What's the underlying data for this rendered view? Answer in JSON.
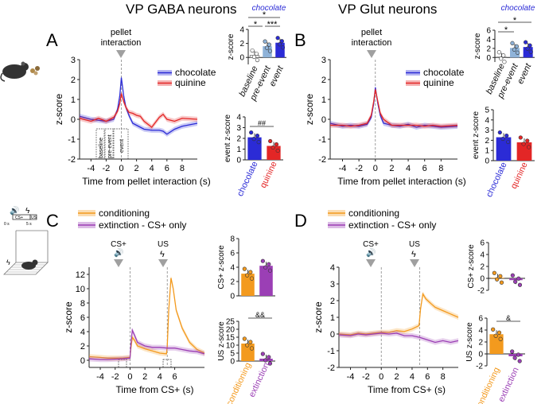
{
  "colors": {
    "chocolate": "#2b2bd6",
    "quinine": "#e32626",
    "pre_event": "#8fb3d9",
    "conditioning": "#f39a1e",
    "extinction": "#9b3fb5",
    "axis": "#222222",
    "arrow": "#a0a0a0"
  },
  "titles": {
    "gaba": "VP GABA neurons",
    "glut": "VP Glut neurons",
    "chocolate_A": "chocolate",
    "chocolate_B": "chocolate"
  },
  "panel_letters": {
    "A": "A",
    "B": "B",
    "C": "C",
    "D": "D"
  },
  "annotations": {
    "pellet_interaction_A": [
      "pellet",
      "interaction"
    ],
    "pellet_interaction_B": [
      "pellet",
      "interaction"
    ],
    "cs_C": "CS+",
    "us_C": "US",
    "cs_D": "CS+",
    "us_D": "US",
    "sig_A_top": "*",
    "sig_A_mid": "*",
    "sig_A_right": "***",
    "sig_A_event": "##",
    "sig_B_top": "*",
    "sig_B_mid": "*",
    "sig_C_us": "&&",
    "sig_D_us": "&",
    "window_labels": [
      "baseline",
      "pre-event",
      "event"
    ],
    "schematic_cs": "CS+",
    "schematic_us": "US",
    "schematic_t0": "0 s",
    "schematic_t5": "5 s"
  },
  "legends": {
    "AB": [
      "chocolate",
      "quinine"
    ],
    "CD": [
      "conditioning",
      "extinction - CS+ only"
    ]
  },
  "chart_data": [
    {
      "id": "A_trace",
      "type": "line",
      "xlabel": "Time from pellet interaction (s)",
      "ylabel": "z-score",
      "xlim": [
        -5.5,
        10
      ],
      "ylim": [
        -2,
        3
      ],
      "xticks": [
        -4,
        -2,
        0,
        2,
        4,
        6,
        8
      ],
      "yticks": [
        -2,
        -1,
        0,
        1,
        2,
        3
      ],
      "series": [
        {
          "name": "chocolate",
          "x": [
            -5.5,
            -4,
            -3,
            -2,
            -1,
            -0.5,
            -0.2,
            0,
            0.3,
            0.6,
            1,
            1.5,
            2,
            2.5,
            3,
            4,
            5,
            5.5,
            6,
            7,
            8,
            10
          ],
          "y": [
            0.15,
            0.0,
            -0.05,
            -0.1,
            0.0,
            0.5,
            1.2,
            2.1,
            1.2,
            0.6,
            0.2,
            -0.2,
            -0.3,
            -0.4,
            -0.5,
            -0.55,
            -0.55,
            -0.6,
            -0.75,
            -0.5,
            -0.35,
            -0.2
          ]
        },
        {
          "name": "quinine",
          "x": [
            -5.5,
            -4,
            -3,
            -2,
            -1,
            -0.5,
            -0.2,
            0,
            0.3,
            0.6,
            1,
            1.5,
            2,
            2.5,
            3,
            4,
            5,
            5.5,
            6,
            7,
            8,
            10
          ],
          "y": [
            0.05,
            -0.1,
            0.05,
            -0.1,
            0.1,
            0.4,
            0.8,
            1.3,
            0.9,
            0.6,
            0.35,
            0.3,
            0.2,
            0.15,
            -0.1,
            -0.4,
            0.1,
            0.25,
            0.0,
            -0.1,
            0.05,
            0.0
          ]
        }
      ]
    },
    {
      "id": "A_bars_top",
      "type": "bar",
      "ylabel": "z-score",
      "ylim": [
        -1,
        4
      ],
      "yticks": [
        0,
        2,
        4
      ],
      "categories": [
        "baseline",
        "pre-event",
        "event"
      ],
      "values": [
        0.3,
        1.6,
        2.1
      ]
    },
    {
      "id": "A_bars_event",
      "type": "bar",
      "ylabel": "event z-score",
      "ylim": [
        0,
        4
      ],
      "yticks": [
        0,
        1,
        2,
        3,
        4
      ],
      "categories": [
        "chocolate",
        "quinine"
      ],
      "values": [
        2.1,
        1.3
      ]
    },
    {
      "id": "B_trace",
      "type": "line",
      "xlabel": "Time from pellet interaction (s)",
      "ylabel": "z-score",
      "xlim": [
        -5.5,
        10
      ],
      "ylim": [
        -2,
        3
      ],
      "xticks": [
        -4,
        -2,
        0,
        2,
        4,
        6,
        8
      ],
      "yticks": [
        -2,
        -1,
        0,
        1,
        2,
        3
      ],
      "series": [
        {
          "name": "chocolate",
          "x": [
            -5.5,
            -4,
            -3,
            -2,
            -1,
            -0.5,
            -0.2,
            0,
            0.3,
            0.6,
            1,
            2,
            3,
            4,
            5,
            6,
            7,
            8,
            10
          ],
          "y": [
            -0.2,
            -0.35,
            -0.3,
            -0.35,
            -0.25,
            0.1,
            0.8,
            1.6,
            0.8,
            0.2,
            -0.2,
            -0.3,
            -0.35,
            -0.25,
            -0.4,
            -0.3,
            -0.35,
            -0.4,
            -0.35
          ]
        },
        {
          "name": "quinine",
          "x": [
            -5.5,
            -4,
            -3,
            -2,
            -1,
            -0.5,
            -0.2,
            0,
            0.3,
            0.6,
            1,
            2,
            3,
            4,
            5,
            6,
            7,
            8,
            10
          ],
          "y": [
            -0.3,
            -0.3,
            -0.35,
            -0.3,
            -0.2,
            0.2,
            0.9,
            1.5,
            0.9,
            0.3,
            0.0,
            -0.3,
            -0.3,
            -0.3,
            -0.3,
            -0.35,
            -0.3,
            -0.35,
            -0.3
          ]
        }
      ]
    },
    {
      "id": "B_bars_top",
      "type": "bar",
      "ylabel": "z-score",
      "ylim": [
        -1,
        6
      ],
      "yticks": [
        0,
        2,
        4,
        6
      ],
      "categories": [
        "baseline",
        "pre-event",
        "event"
      ],
      "values": [
        0.1,
        2.1,
        2.3
      ]
    },
    {
      "id": "B_bars_event",
      "type": "bar",
      "ylabel": "event z-score",
      "ylim": [
        0,
        5
      ],
      "yticks": [
        0,
        1,
        2,
        3,
        4,
        5
      ],
      "categories": [
        "chocolate",
        "quinine"
      ],
      "values": [
        2.3,
        1.8
      ]
    },
    {
      "id": "C_trace",
      "type": "line",
      "xlabel": "Time from CS+ (s)",
      "ylabel": "z-score",
      "xlim": [
        -5.5,
        10
      ],
      "ylim": [
        -1,
        13
      ],
      "xticks": [
        -4,
        -2,
        0,
        2,
        4,
        6
      ],
      "yticks": [
        0,
        2,
        4,
        6,
        8,
        10,
        12
      ],
      "series": [
        {
          "name": "conditioning",
          "x": [
            -5.5,
            -4,
            -3,
            -2,
            -1,
            0,
            0.1,
            0.3,
            0.6,
            1,
            2,
            3,
            4,
            4.9,
            5,
            5.2,
            5.5,
            5.8,
            6.2,
            7,
            8,
            9,
            10
          ],
          "y": [
            0.5,
            0.4,
            0.3,
            0.3,
            0.3,
            0.4,
            1.5,
            3.2,
            2.8,
            2.0,
            1.6,
            1.3,
            1.0,
            0.9,
            2,
            7,
            11.5,
            10,
            7,
            4.5,
            2.5,
            1.5,
            1.0
          ]
        },
        {
          "name": "extinction - CS+ only",
          "x": [
            -5.5,
            -4,
            -3,
            -2,
            -1,
            0,
            0.1,
            0.3,
            0.6,
            1,
            2,
            3,
            4,
            5,
            6,
            7,
            8,
            9,
            10
          ],
          "y": [
            0.2,
            0.1,
            0.1,
            0.15,
            0.2,
            0.3,
            2.0,
            4.2,
            3.5,
            2.5,
            2.0,
            1.8,
            1.8,
            1.7,
            1.7,
            1.5,
            1.3,
            1.2,
            0.9
          ]
        }
      ]
    },
    {
      "id": "C_bars_cs",
      "type": "bar",
      "ylabel": "CS+ z-score",
      "ylim": [
        0,
        8
      ],
      "yticks": [
        0,
        2,
        4,
        6,
        8
      ],
      "categories": [
        "conditioning",
        "extinction"
      ],
      "values": [
        3.1,
        4.2
      ]
    },
    {
      "id": "C_bars_us",
      "type": "bar",
      "ylabel": "US z-score",
      "ylim": [
        0,
        25
      ],
      "yticks": [
        0,
        5,
        10,
        15,
        20,
        25
      ],
      "categories": [
        "conditioning",
        "extinction"
      ],
      "values": [
        11.0,
        1.5
      ]
    },
    {
      "id": "D_trace",
      "type": "line",
      "xlabel": "Time from CS+ (s)",
      "ylabel": "z-score",
      "xlim": [
        -5.5,
        10
      ],
      "ylim": [
        -2,
        4
      ],
      "xticks": [
        -4,
        -2,
        0,
        2,
        4,
        6,
        8
      ],
      "yticks": [
        -2,
        -1,
        0,
        1,
        2,
        3,
        4
      ],
      "series": [
        {
          "name": "conditioning",
          "x": [
            -5.5,
            -4,
            -3,
            -2,
            -1,
            0,
            1,
            2,
            3,
            4,
            4.9,
            5.1,
            5.4,
            5.8,
            6.5,
            7,
            8,
            9,
            10
          ],
          "y": [
            0.0,
            -0.05,
            0.05,
            0.0,
            0.05,
            0.1,
            0.1,
            0.2,
            0.15,
            0.3,
            0.5,
            1.5,
            2.4,
            2.1,
            1.8,
            1.6,
            1.4,
            1.2,
            1.0
          ]
        },
        {
          "name": "extinction - CS+ only",
          "x": [
            -5.5,
            -4,
            -3,
            -2,
            -1,
            0,
            1,
            2,
            3,
            4,
            5,
            6,
            7,
            8,
            9,
            10
          ],
          "y": [
            -0.05,
            -0.1,
            0.0,
            -0.05,
            0.0,
            0.05,
            0.0,
            0.05,
            -0.1,
            -0.1,
            -0.2,
            -0.35,
            -0.5,
            -0.4,
            -0.5,
            -0.4
          ]
        }
      ]
    },
    {
      "id": "D_bars_cs",
      "type": "bar",
      "ylabel": "CS+ z-score",
      "ylim": [
        -2,
        6
      ],
      "yticks": [
        -2,
        0,
        2,
        4,
        6
      ],
      "categories": [
        "conditioning",
        "extinction"
      ],
      "values": [
        0.1,
        -0.3
      ]
    },
    {
      "id": "D_bars_us",
      "type": "bar",
      "ylabel": "US z-score",
      "ylim": [
        -2,
        6
      ],
      "yticks": [
        -2,
        0,
        2,
        4,
        6
      ],
      "categories": [
        "conditioning",
        "extinction"
      ],
      "values": [
        3.3,
        -0.4
      ]
    }
  ]
}
